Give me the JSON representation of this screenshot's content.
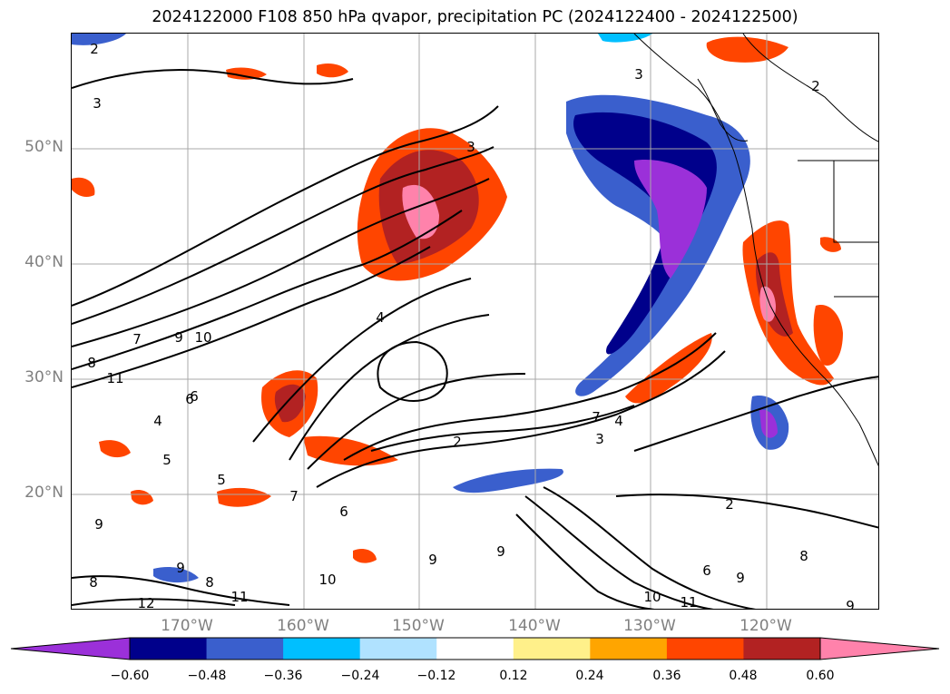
{
  "title": "2024122000 F108 850 hPa qvapor, precipitation PC (2024122400 - 2024122500)",
  "map": {
    "lat_labels": [
      "50°N",
      "40°N",
      "30°N",
      "20°N"
    ],
    "lon_labels": [
      "170°W",
      "160°W",
      "150°W",
      "140°W",
      "130°W",
      "120°W"
    ],
    "grid": true,
    "contour_labels": [
      "2",
      "3",
      "3",
      "3",
      "4",
      "7",
      "9",
      "10",
      "8",
      "11",
      "6",
      "4",
      "5",
      "5",
      "6",
      "7",
      "6",
      "2",
      "7",
      "4",
      "3",
      "2",
      "8",
      "9",
      "6",
      "10",
      "11",
      "12",
      "11",
      "9",
      "8",
      "9",
      "10",
      "9",
      "9",
      "9",
      "8",
      "2"
    ]
  },
  "colorbar": {
    "tick_labels": [
      "−0.60",
      "−0.48",
      "−0.36",
      "−0.24",
      "−0.12",
      "0.12",
      "0.24",
      "0.36",
      "0.48",
      "0.60"
    ],
    "colors": [
      "#9b30d9",
      "#00008b",
      "#3a5fcd",
      "#00bfff",
      "#b0e2ff",
      "#ffffff",
      "#fff08a",
      "#ffa500",
      "#ff4500",
      "#b22222",
      "#ff82ab"
    ],
    "extend": "both"
  }
}
